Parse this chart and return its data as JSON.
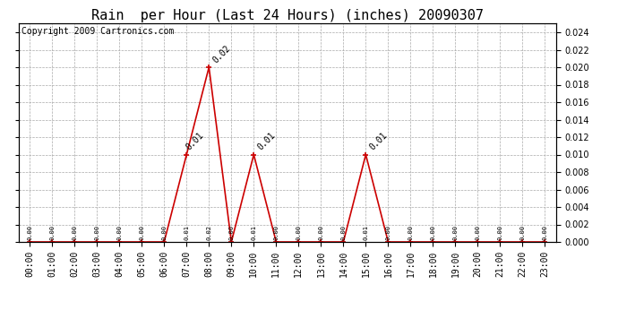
{
  "title": "Rain  per Hour (Last 24 Hours) (inches) 20090307",
  "copyright": "Copyright 2009 Cartronics.com",
  "hours": [
    0,
    1,
    2,
    3,
    4,
    5,
    6,
    7,
    8,
    9,
    10,
    11,
    12,
    13,
    14,
    15,
    16,
    17,
    18,
    19,
    20,
    21,
    22,
    23
  ],
  "values": [
    0.0,
    0.0,
    0.0,
    0.0,
    0.0,
    0.0,
    0.0,
    0.01,
    0.02,
    0.0,
    0.01,
    0.0,
    0.0,
    0.0,
    0.0,
    0.01,
    0.0,
    0.0,
    0.0,
    0.0,
    0.0,
    0.0,
    0.0,
    0.0
  ],
  "line_color": "#cc0000",
  "background_color": "#ffffff",
  "grid_color": "#aaaaaa",
  "ylim": [
    0.0,
    0.025
  ],
  "yticks": [
    0.0,
    0.002,
    0.004,
    0.006,
    0.008,
    0.01,
    0.012,
    0.014,
    0.016,
    0.018,
    0.02,
    0.022,
    0.024
  ],
  "title_fontsize": 11,
  "copyright_fontsize": 7,
  "annotation_fontsize": 7,
  "tick_fontsize": 7,
  "label_fontsize": 7
}
